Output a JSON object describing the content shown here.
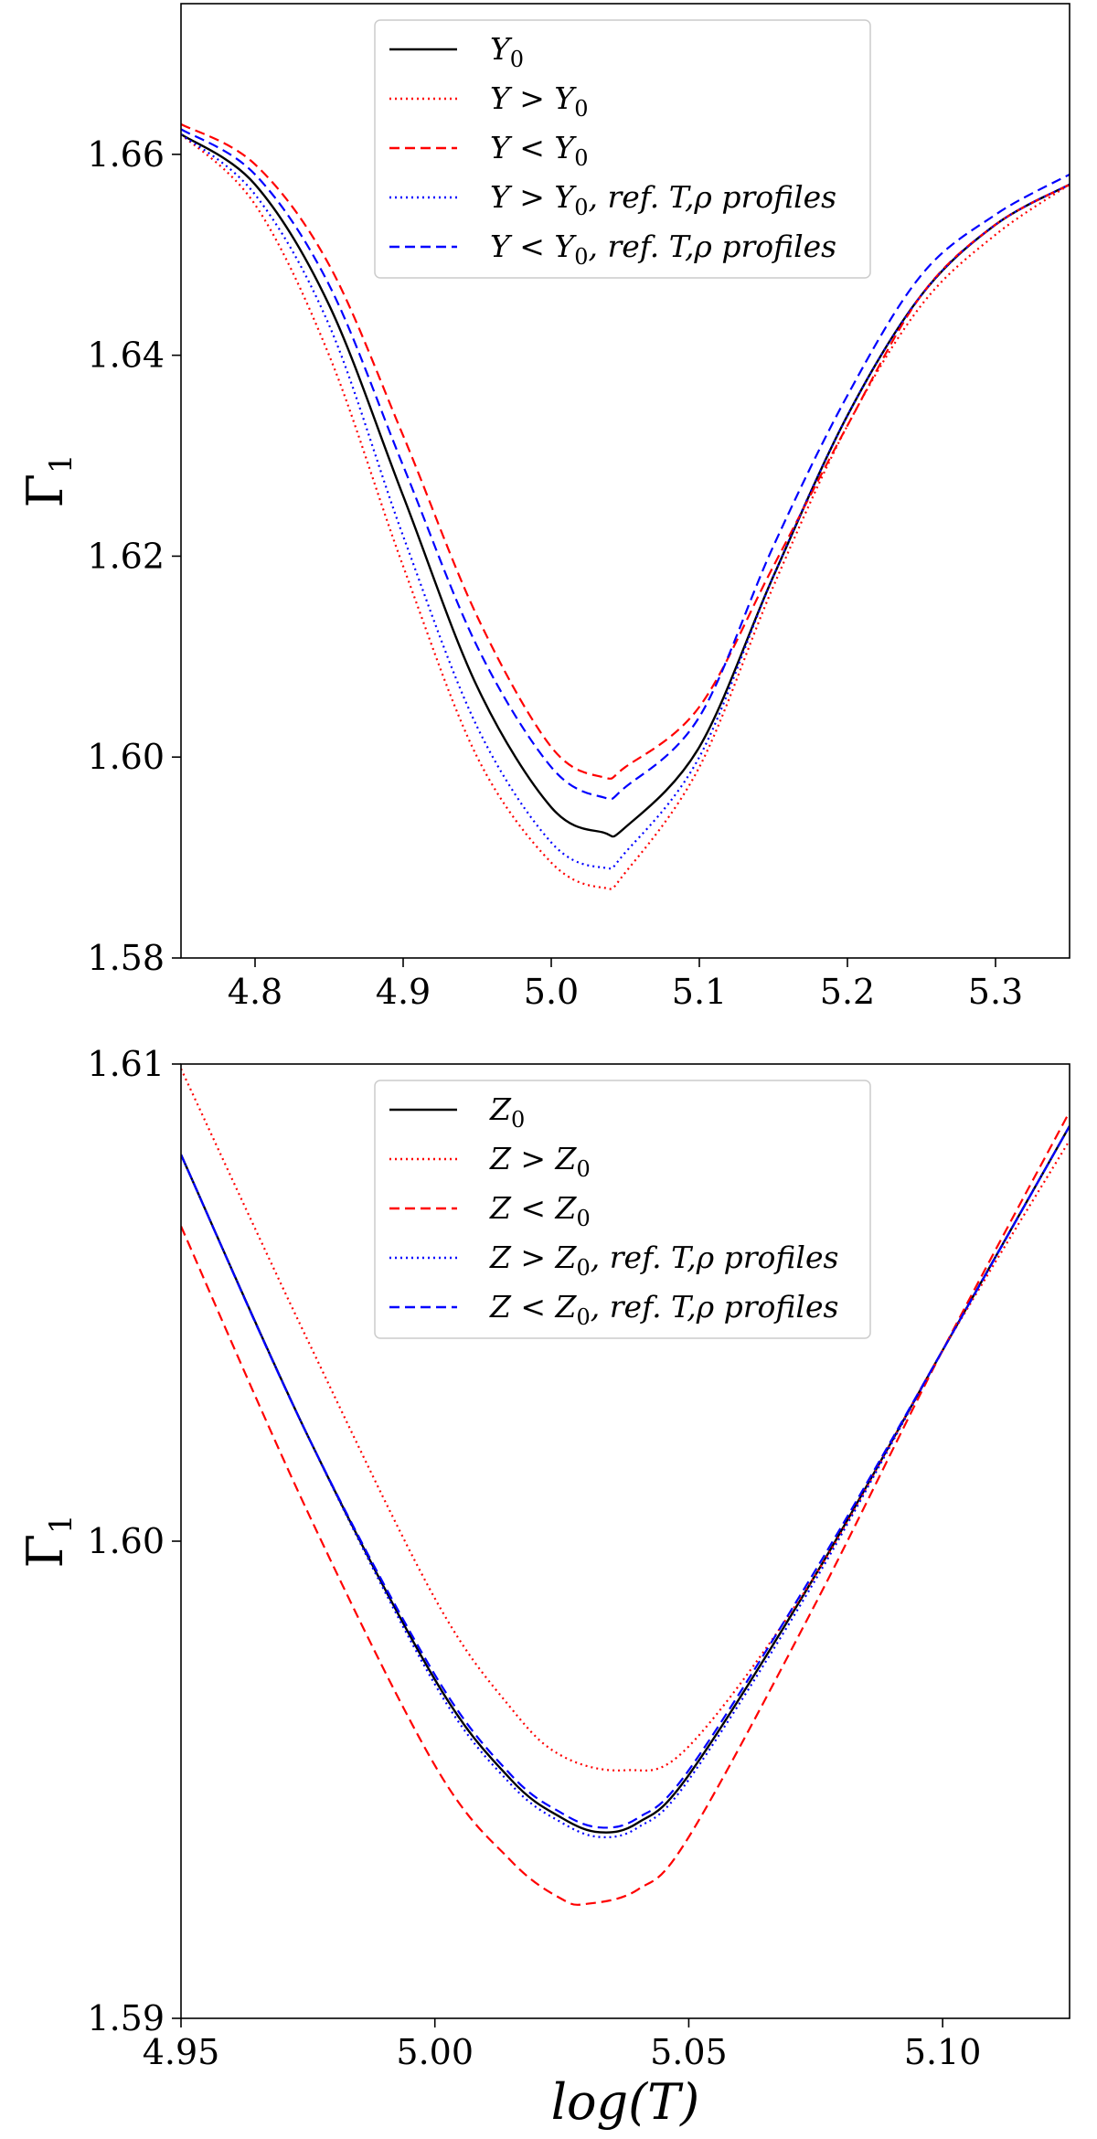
{
  "chart_data": [
    {
      "type": "line",
      "title": "",
      "xlabel": "",
      "ylabel": "Γ₁",
      "xlim": [
        4.75,
        5.35
      ],
      "ylim": [
        1.58,
        1.675
      ],
      "xticks": [
        4.8,
        4.9,
        5.0,
        5.1,
        5.2,
        5.3
      ],
      "yticks": [
        1.58,
        1.6,
        1.62,
        1.64,
        1.66
      ],
      "xtick_labels": [
        "4.8",
        "4.9",
        "5.0",
        "5.1",
        "5.2",
        "5.3"
      ],
      "ytick_labels": [
        "1.58",
        "1.60",
        "1.62",
        "1.64",
        "1.66"
      ],
      "grid": false,
      "legend_position": "top-center",
      "series": [
        {
          "name": "Y₀",
          "color": "#000000",
          "dash": "solid",
          "x": [
            4.75,
            4.8,
            4.85,
            4.9,
            4.95,
            5.0,
            5.035,
            5.05,
            5.1,
            5.15,
            5.2,
            5.25,
            5.3,
            5.35
          ],
          "y": [
            1.662,
            1.657,
            1.645,
            1.626,
            1.607,
            1.595,
            1.5925,
            1.593,
            1.601,
            1.618,
            1.634,
            1.646,
            1.653,
            1.657
          ]
        },
        {
          "name": "Y > Y₀",
          "color": "#ff0000",
          "dash": "dotted",
          "x": [
            4.75,
            4.8,
            4.85,
            4.9,
            4.95,
            5.0,
            5.035,
            5.05,
            5.1,
            5.15,
            5.2,
            5.25,
            5.3,
            5.35
          ],
          "y": [
            1.662,
            1.655,
            1.64,
            1.619,
            1.6,
            1.5895,
            1.587,
            1.5885,
            1.599,
            1.617,
            1.633,
            1.645,
            1.652,
            1.657
          ]
        },
        {
          "name": "Y < Y₀",
          "color": "#ff0000",
          "dash": "dashed",
          "x": [
            4.75,
            4.8,
            4.85,
            4.9,
            4.95,
            5.0,
            5.035,
            5.05,
            5.1,
            5.15,
            5.2,
            5.25,
            5.3,
            5.35
          ],
          "y": [
            1.663,
            1.659,
            1.649,
            1.632,
            1.614,
            1.601,
            1.598,
            1.599,
            1.605,
            1.619,
            1.633,
            1.646,
            1.653,
            1.657
          ]
        },
        {
          "name": "Y > Y₀, ref. T,ρ profiles",
          "color": "#0000ff",
          "dash": "dotted",
          "x": [
            4.75,
            4.8,
            4.85,
            4.9,
            4.95,
            5.0,
            5.035,
            5.05,
            5.1,
            5.15,
            5.2,
            5.25,
            5.3,
            5.35
          ],
          "y": [
            1.662,
            1.656,
            1.643,
            1.622,
            1.603,
            1.5915,
            1.589,
            1.5905,
            1.6,
            1.618,
            1.634,
            1.646,
            1.653,
            1.657
          ]
        },
        {
          "name": "Y < Y₀, ref. T,ρ profiles",
          "color": "#0000ff",
          "dash": "dashed",
          "x": [
            4.75,
            4.8,
            4.85,
            4.9,
            4.95,
            5.0,
            5.035,
            5.05,
            5.1,
            5.15,
            5.2,
            5.25,
            5.3,
            5.35
          ],
          "y": [
            1.6625,
            1.658,
            1.647,
            1.629,
            1.611,
            1.599,
            1.596,
            1.597,
            1.604,
            1.621,
            1.636,
            1.648,
            1.654,
            1.658
          ]
        }
      ]
    },
    {
      "type": "line",
      "title": "",
      "xlabel": "log(T)",
      "ylabel": "Γ₁",
      "xlim": [
        4.95,
        5.125
      ],
      "ylim": [
        1.59,
        1.61
      ],
      "xticks": [
        4.95,
        5.0,
        5.05,
        5.1
      ],
      "yticks": [
        1.59,
        1.6,
        1.61
      ],
      "xtick_labels": [
        "4.95",
        "5.00",
        "5.05",
        "5.10"
      ],
      "ytick_labels": [
        "1.59",
        "1.60",
        "1.61"
      ],
      "grid": false,
      "legend_position": "top-center",
      "series": [
        {
          "name": "Z₀",
          "color": "#000000",
          "dash": "solid",
          "x": [
            4.95,
            4.975,
            5.0,
            5.015,
            5.025,
            5.0325,
            5.04,
            5.05,
            5.075,
            5.1,
            5.125
          ],
          "y": [
            1.6081,
            1.6022,
            1.5971,
            1.595,
            1.5942,
            1.5939,
            1.5941,
            1.5951,
            1.5993,
            1.604,
            1.6087
          ]
        },
        {
          "name": "Z > Z₀",
          "color": "#ff0000",
          "dash": "dotted",
          "x": [
            4.95,
            4.975,
            5.0,
            5.015,
            5.025,
            5.0375,
            5.05,
            5.075,
            5.1,
            5.125
          ],
          "y": [
            1.6099,
            1.6042,
            1.5988,
            1.5965,
            1.5955,
            1.5952,
            1.5957,
            1.5993,
            1.604,
            1.6084
          ]
        },
        {
          "name": "Z < Z₀",
          "color": "#ff0000",
          "dash": "dashed",
          "x": [
            4.95,
            4.975,
            5.0,
            5.015,
            5.025,
            5.03,
            5.04,
            5.05,
            5.075,
            5.1,
            5.125
          ],
          "y": [
            1.6066,
            1.6006,
            1.5953,
            1.5933,
            1.5925,
            1.5924,
            1.5927,
            1.5938,
            1.5987,
            1.604,
            1.609
          ]
        },
        {
          "name": "Z > Z₀, ref. T,ρ profiles",
          "color": "#0000ff",
          "dash": "dotted",
          "x": [
            4.95,
            4.975,
            5.0,
            5.015,
            5.025,
            5.0325,
            5.04,
            5.05,
            5.075,
            5.1,
            5.125
          ],
          "y": [
            1.6081,
            1.6022,
            1.597,
            1.5949,
            1.5941,
            1.5938,
            1.594,
            1.595,
            1.5992,
            1.604,
            1.6087
          ]
        },
        {
          "name": "Z < Z₀, ref. T,ρ profiles",
          "color": "#0000ff",
          "dash": "dashed",
          "x": [
            4.95,
            4.975,
            5.0,
            5.015,
            5.025,
            5.0325,
            5.04,
            5.05,
            5.075,
            5.1,
            5.125
          ],
          "y": [
            1.6081,
            1.6022,
            1.5972,
            1.5951,
            1.5943,
            1.594,
            1.5942,
            1.5952,
            1.5994,
            1.604,
            1.6087
          ]
        }
      ]
    }
  ]
}
